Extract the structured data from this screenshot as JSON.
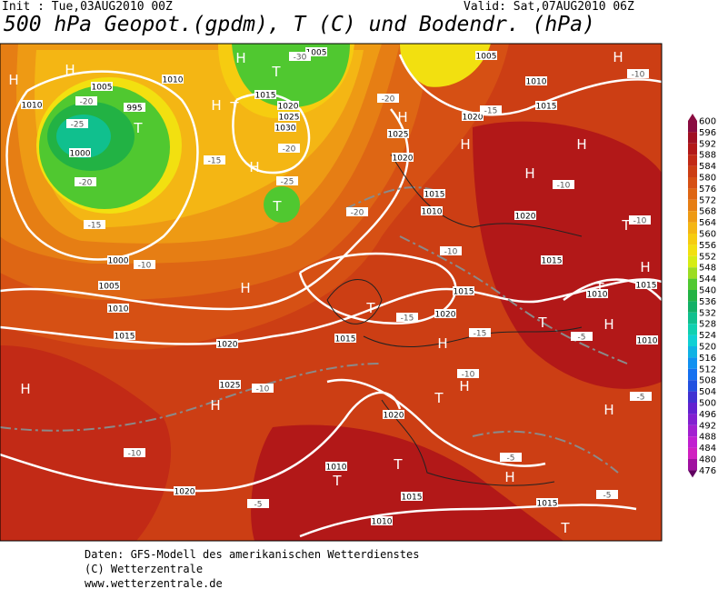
{
  "header": {
    "init": "Init : Tue,03AUG2010 00Z",
    "valid": "Valid: Sat,07AUG2010 06Z",
    "title": "500 hPa Geopot.(gpdm), T (C) und Bodendr. (hPa)"
  },
  "map_labels": [
    "H",
    "H",
    "T",
    "H",
    "T",
    "H",
    "T",
    "H",
    "T",
    "H",
    "H",
    "H",
    "H",
    "H",
    "T",
    "H",
    "T",
    "H",
    "T",
    "H",
    "T",
    "H",
    "H",
    "T",
    "H",
    "H",
    "H",
    "T",
    "T",
    "H",
    "T"
  ],
  "isobar_labels": [
    "1005",
    "1010",
    "995",
    "1000",
    "1010",
    "1005",
    "1015",
    "1020",
    "1025",
    "1030",
    "1025",
    "1020",
    "1005",
    "1010",
    "1015",
    "1020",
    "1015",
    "1010",
    "1020",
    "1015",
    "1015",
    "1020",
    "1015",
    "1020",
    "1015",
    "1010",
    "1005",
    "1000",
    "1025",
    "1020",
    "1010",
    "1015",
    "1010",
    "1010",
    "1015",
    "1020",
    "1015",
    "1010"
  ],
  "temperature_labels": [
    "-10",
    "-10",
    "-5",
    "-5",
    "-5",
    "-10",
    "-10",
    "-10",
    "-5",
    "-5",
    "-10",
    "-15",
    "-15",
    "-10",
    "-20",
    "-15",
    "-20",
    "-25",
    "-20",
    "-15",
    "-30",
    "-25",
    "-20",
    "-15",
    "-20",
    "-10"
  ],
  "colorbar": {
    "labels": [
      600,
      596,
      592,
      588,
      584,
      580,
      576,
      572,
      568,
      564,
      560,
      556,
      552,
      548,
      544,
      540,
      536,
      532,
      528,
      524,
      520,
      516,
      512,
      508,
      504,
      500,
      496,
      492,
      488,
      484,
      480,
      476
    ],
    "colors": [
      "#8a0c40",
      "#a01022",
      "#b21818",
      "#c22a16",
      "#cc3e14",
      "#d65014",
      "#de6614",
      "#e67e14",
      "#ee9a14",
      "#f4b614",
      "#f6cc10",
      "#f2e010",
      "#d6ec14",
      "#9cdc22",
      "#50c830",
      "#22b244",
      "#12b066",
      "#10c08e",
      "#10d0b0",
      "#10d0d4",
      "#10b2e4",
      "#1090f0",
      "#1470f0",
      "#2250e0",
      "#4032d2",
      "#6222d0",
      "#8220d0",
      "#a220d0",
      "#c020d0",
      "#d020c0",
      "#a010a0",
      "#600060"
    ]
  },
  "footer": [
    "Daten: GFS-Modell des amerikanischen Wetterdienstes",
    "(C) Wetterzentrale",
    "www.wetterzentrale.de"
  ]
}
